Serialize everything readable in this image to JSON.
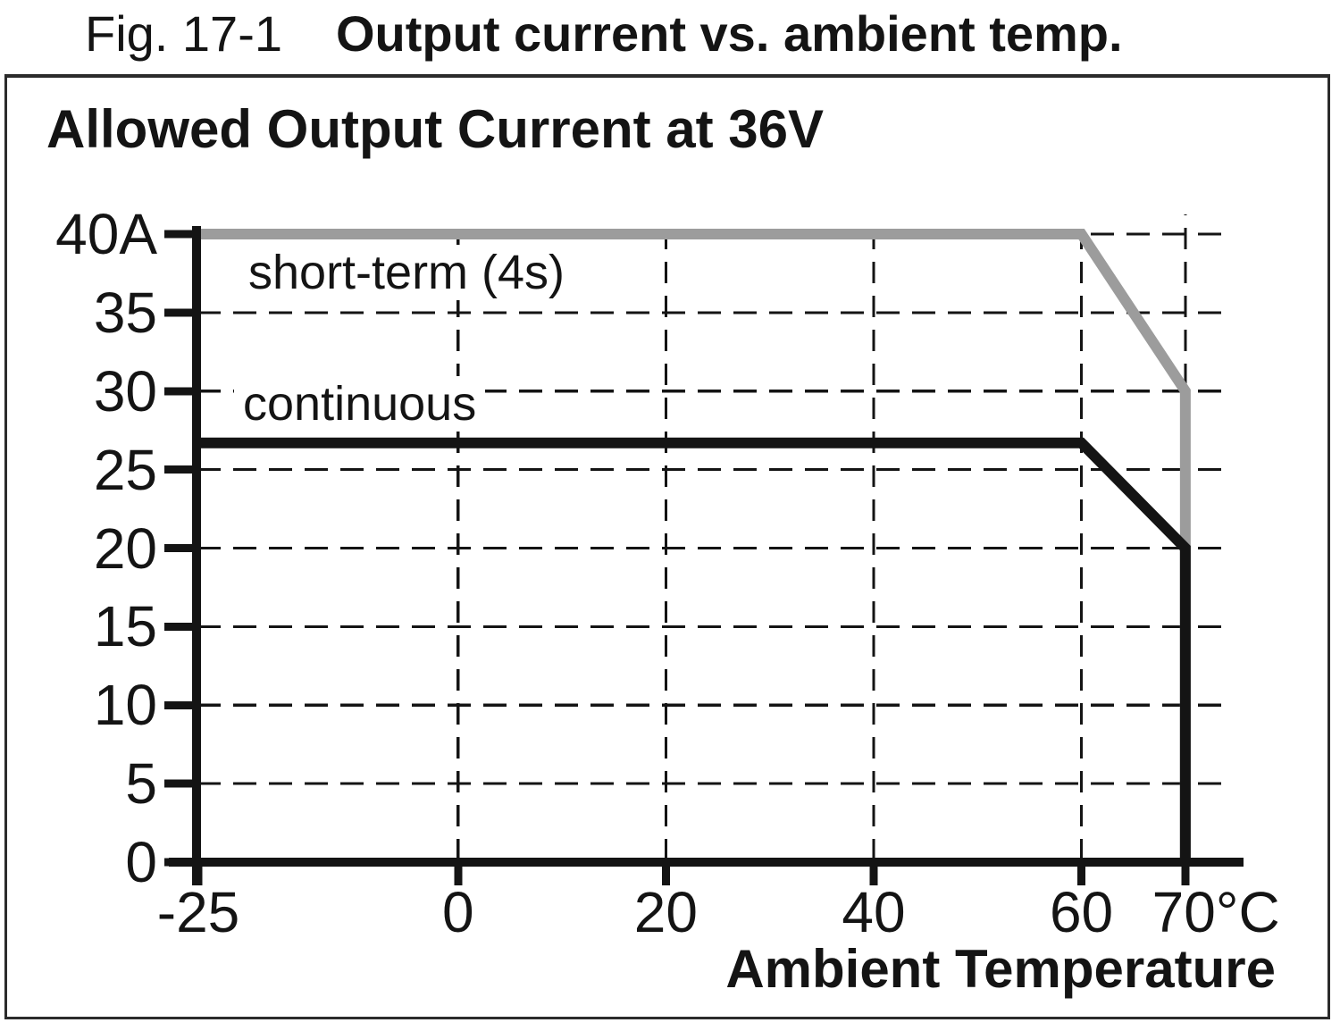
{
  "figure": {
    "caption_prefix": "Fig. 17-1",
    "caption_title": "Output current vs. ambient temp."
  },
  "chart_data": {
    "type": "line",
    "title": "Allowed Output Current at 36V",
    "xlabel": "Ambient Temperature",
    "x_unit": "°C",
    "y_unit": "A",
    "xlim": [
      -25,
      75
    ],
    "ylim": [
      0,
      40
    ],
    "grid": "dashed",
    "legend_position": "inline-curve-labels",
    "x_ticks": [
      {
        "value": -25,
        "label": "-25"
      },
      {
        "value": 0,
        "label": "0"
      },
      {
        "value": 20,
        "label": "20"
      },
      {
        "value": 40,
        "label": "40"
      },
      {
        "value": 60,
        "label": "60"
      },
      {
        "value": 70,
        "label": "70°C"
      }
    ],
    "y_ticks": [
      {
        "value": 0,
        "label": "0"
      },
      {
        "value": 5,
        "label": "5"
      },
      {
        "value": 10,
        "label": "10"
      },
      {
        "value": 15,
        "label": "15"
      },
      {
        "value": 20,
        "label": "20"
      },
      {
        "value": 25,
        "label": "25"
      },
      {
        "value": 30,
        "label": "30"
      },
      {
        "value": 35,
        "label": "35"
      },
      {
        "value": 40,
        "label": "40A"
      }
    ],
    "h_gridline_values": [
      5,
      10,
      15,
      20,
      25,
      30,
      35,
      40
    ],
    "v_gridline_values": [
      0,
      20,
      40,
      60,
      70
    ],
    "series": [
      {
        "name": "short-term (4s)",
        "color": "#9c9c9c",
        "points": [
          [
            -25,
            40
          ],
          [
            60,
            40
          ],
          [
            70,
            30
          ],
          [
            70,
            0
          ]
        ]
      },
      {
        "name": "continuous",
        "color": "#141414",
        "points": [
          [
            -25,
            26.7
          ],
          [
            60,
            26.7
          ],
          [
            70,
            20
          ],
          [
            70,
            0
          ]
        ]
      }
    ]
  },
  "colors": {
    "axis": "#141414",
    "grid": "#141414",
    "frame": "#2b2b2b",
    "text": "#141414",
    "background": "#ffffff"
  }
}
